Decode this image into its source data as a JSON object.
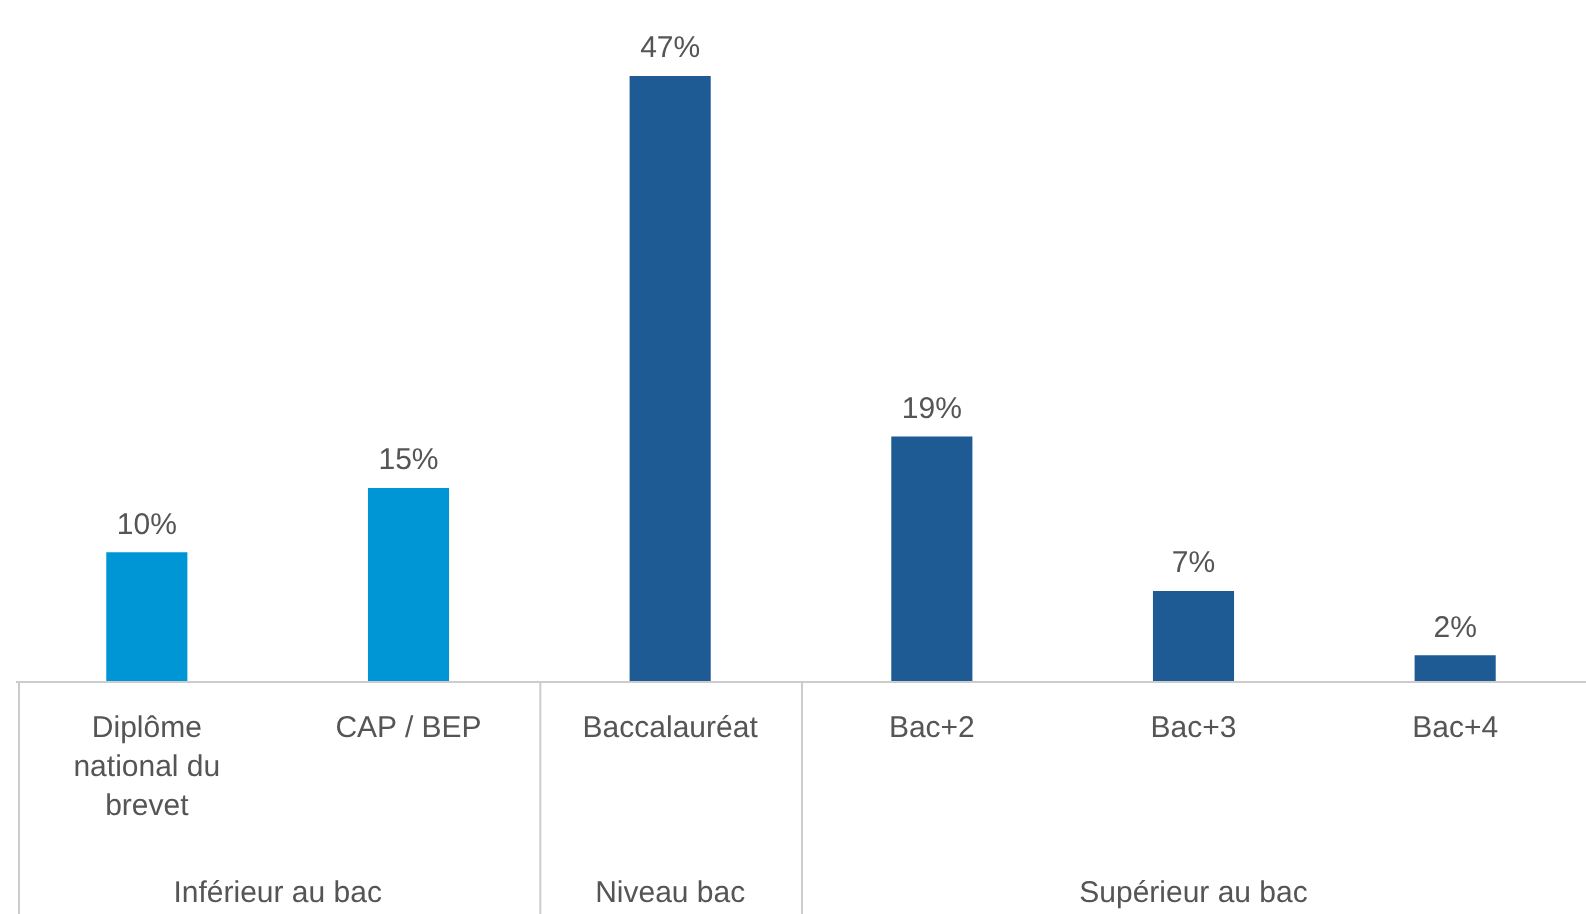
{
  "chart_data": {
    "type": "bar",
    "categories": [
      "Diplôme national du brevet",
      "CAP / BEP",
      "Baccalauréat",
      "Bac+2",
      "Bac+3",
      "Bac+4"
    ],
    "values": [
      10,
      15,
      47,
      19,
      7,
      2
    ],
    "colors": [
      "#0096d6",
      "#0096d6",
      "#1e5b94",
      "#1e5b94",
      "#1e5b94",
      "#1e5b94"
    ],
    "value_labels": [
      "10%",
      "15%",
      "47%",
      "19%",
      "7%",
      "2%"
    ],
    "tick_labels": "x",
    "grid": false,
    "legend": false,
    "annotations": [
      "Inférieur au bac",
      "Niveau bac",
      "Supérieur au bac"
    ]
  }
}
